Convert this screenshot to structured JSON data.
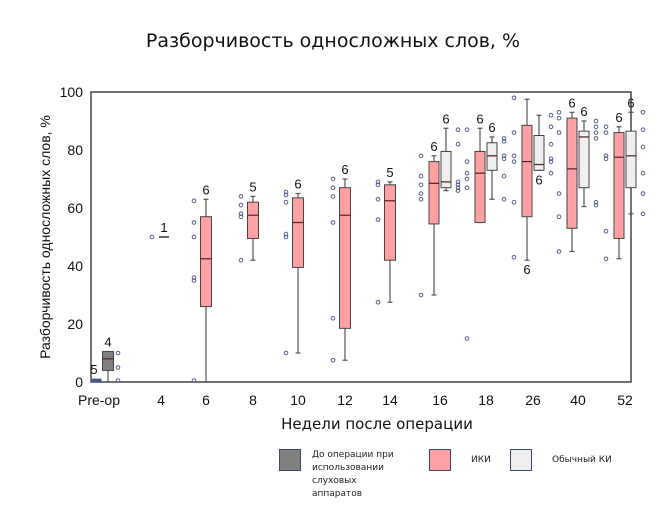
{
  "chart_data": {
    "type": "boxplot",
    "title": "Разборчивость односложных слов, %",
    "xlabel": "Недели после операции",
    "ylabel": "Разборчивость односложных слов, %",
    "ylim": [
      0,
      100
    ],
    "yticks": [
      0,
      20,
      40,
      60,
      80,
      100
    ],
    "categories": [
      "Pre-op",
      "4",
      "6",
      "8",
      "10",
      "12",
      "14",
      "16",
      "18",
      "26",
      "40",
      "52"
    ],
    "series": [
      {
        "name": "До операции при использовании слуховых аппаратов",
        "color": "#808080"
      },
      {
        "name": "ИКИ",
        "color": "#ffa0a4"
      },
      {
        "name": "Обычный КИ",
        "color": "#efefef"
      }
    ],
    "boxes": [
      {
        "category": "Pre-op",
        "series": 0,
        "n": "5",
        "min": 0,
        "q1": 0,
        "median": 0,
        "q3": 1,
        "max": 1,
        "points": []
      },
      {
        "category": "Pre-op",
        "series": 0,
        "n": "4",
        "min": 0,
        "q1": 4,
        "median": 8,
        "q3": 10.5,
        "max": 10.5,
        "points": [
          0.5,
          5,
          10
        ]
      },
      {
        "category": "4",
        "series": 1,
        "n": "1",
        "min": 50,
        "q1": 50,
        "median": 50,
        "q3": 50,
        "max": 50,
        "points": [
          50
        ]
      },
      {
        "category": "6",
        "series": 1,
        "n": "6",
        "min": 0,
        "q1": 26,
        "median": 42.5,
        "q3": 57,
        "max": 63,
        "points": [
          0.5,
          35,
          36,
          50,
          55,
          62.5
        ]
      },
      {
        "category": "8",
        "series": 1,
        "n": "5",
        "min": 42,
        "q1": 49.5,
        "median": 57.5,
        "q3": 62,
        "max": 64,
        "points": [
          42,
          57,
          58,
          61,
          64
        ]
      },
      {
        "category": "10",
        "series": 1,
        "n": "6",
        "min": 10,
        "q1": 39.5,
        "median": 55,
        "q3": 63.5,
        "max": 65,
        "points": [
          10,
          50,
          51,
          62,
          64.5,
          65.5
        ]
      },
      {
        "category": "12",
        "series": 1,
        "n": "6",
        "min": 7.5,
        "q1": 18.5,
        "median": 57.5,
        "q3": 67,
        "max": 70,
        "points": [
          7.5,
          22,
          55,
          64,
          67,
          70
        ]
      },
      {
        "category": "14",
        "series": 1,
        "n": "5",
        "min": 27.5,
        "q1": 42,
        "median": 62.5,
        "q3": 68,
        "max": 69,
        "points": [
          27.5,
          56,
          63,
          68,
          69
        ]
      },
      {
        "category": "16",
        "series": 1,
        "n": "6",
        "min": 30,
        "q1": 54.5,
        "median": 68.5,
        "q3": 76,
        "max": 78,
        "points": [
          30,
          63,
          65,
          68,
          71,
          78
        ]
      },
      {
        "category": "16",
        "series": 2,
        "n": "6",
        "min": 66,
        "q1": 67,
        "median": 69,
        "q3": 79.5,
        "max": 87.5,
        "points": [
          66,
          67,
          68,
          69,
          82,
          87
        ]
      },
      {
        "category": "18",
        "series": 1,
        "n": "6",
        "min": 55,
        "q1": 55,
        "median": 72,
        "q3": 79.5,
        "max": 87.5,
        "points": [
          15,
          67,
          70,
          72,
          76,
          87
        ]
      },
      {
        "category": "18",
        "series": 2,
        "n": "6",
        "min": 63,
        "q1": 73,
        "median": 78,
        "q3": 82.5,
        "max": 84.5,
        "points": [
          63,
          71,
          77,
          78,
          83,
          84
        ]
      },
      {
        "category": "26",
        "series": 1,
        "n": "6",
        "min": 42,
        "q1": 57,
        "median": 76,
        "q3": 88.5,
        "max": 97.5,
        "points": [
          43,
          62,
          76,
          78,
          86,
          98
        ]
      },
      {
        "category": "26",
        "series": 2,
        "n": "6",
        "min": 73,
        "q1": 73,
        "median": 75,
        "q3": 85,
        "max": 92,
        "points": [
          72,
          76,
          77,
          82,
          88,
          92
        ]
      },
      {
        "category": "40",
        "series": 1,
        "n": "6",
        "min": 45,
        "q1": 53,
        "median": 73.5,
        "q3": 91,
        "max": 93,
        "points": [
          45,
          57,
          65,
          86,
          91,
          93
        ]
      },
      {
        "category": "40",
        "series": 2,
        "n": "6",
        "min": 60.5,
        "q1": 67,
        "median": 84.5,
        "q3": 86.5,
        "max": 90,
        "points": [
          61,
          62,
          84,
          86,
          88,
          90
        ]
      },
      {
        "category": "52",
        "series": 1,
        "n": "6",
        "min": 42.5,
        "q1": 49.5,
        "median": 77.5,
        "q3": 86,
        "max": 88,
        "points": [
          42.5,
          52,
          77,
          78,
          86,
          88
        ]
      },
      {
        "category": "52",
        "series": 2,
        "n": "6",
        "min": 58,
        "q1": 67,
        "median": 78,
        "q3": 86.5,
        "max": 93,
        "points": [
          58,
          65,
          72,
          81,
          87,
          93
        ]
      }
    ],
    "grid": false,
    "legend_position": "bottom"
  },
  "legend": {
    "items": [
      {
        "label": "До операции при\nиспользовании\nслуховых\nаппаратов",
        "color": "#808080"
      },
      {
        "label": "ИКИ",
        "color": "#ffa0a4"
      },
      {
        "label": "Обычный КИ",
        "color": "#efefef"
      }
    ]
  }
}
